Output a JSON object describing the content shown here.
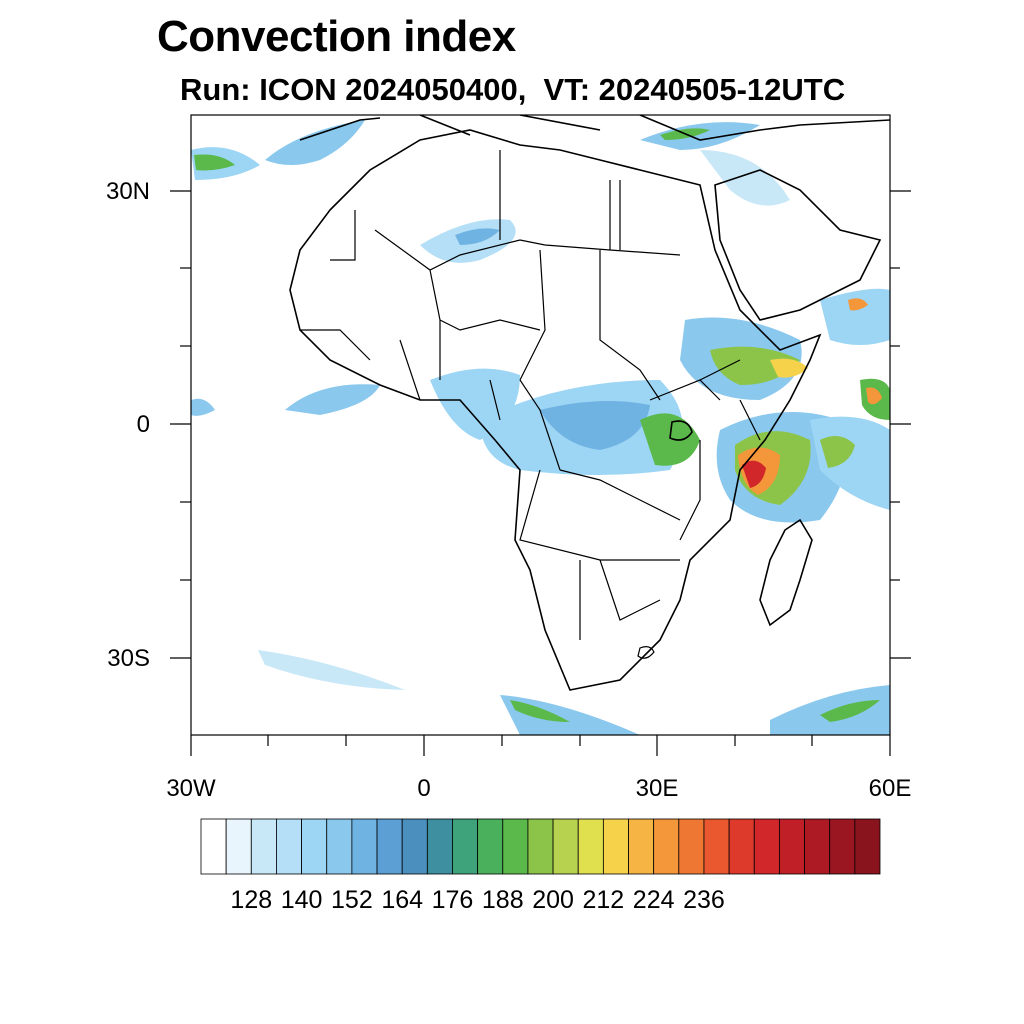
{
  "title": "Convection index",
  "subtitle": "Run: ICON 2024050400,  VT: 20240505-12UTC",
  "axes": {
    "lat_labels": [
      "30N",
      "0",
      "30S"
    ],
    "lon_labels": [
      "30W",
      "0",
      "30E",
      "60E"
    ]
  },
  "colorbar": {
    "labels": [
      "128",
      "140",
      "152",
      "164",
      "176",
      "188",
      "200",
      "212",
      "224",
      "236"
    ],
    "colors": [
      "#ffffff",
      "#e8f5fc",
      "#c9e8f7",
      "#b5dff6",
      "#9dd5f4",
      "#8ac8ee",
      "#6fb3e3",
      "#5b9fd4",
      "#4b8fbf",
      "#3e8f9f",
      "#3ea27a",
      "#4bb05c",
      "#5ab94a",
      "#8cc44a",
      "#b6d24f",
      "#e0e04f",
      "#f6d24b",
      "#f5b443",
      "#f4963a",
      "#ef7734",
      "#e9582f",
      "#dd3a2c",
      "#d1262a",
      "#c01f27",
      "#ad1a23",
      "#9a1620",
      "#8a141d"
    ]
  },
  "map": {
    "projection": "lat-lon",
    "lon_range": [
      -30,
      60
    ],
    "lat_range": [
      -40,
      40
    ],
    "variable": "Convection index",
    "land_fill": "none",
    "coastline_color": "#000000"
  }
}
